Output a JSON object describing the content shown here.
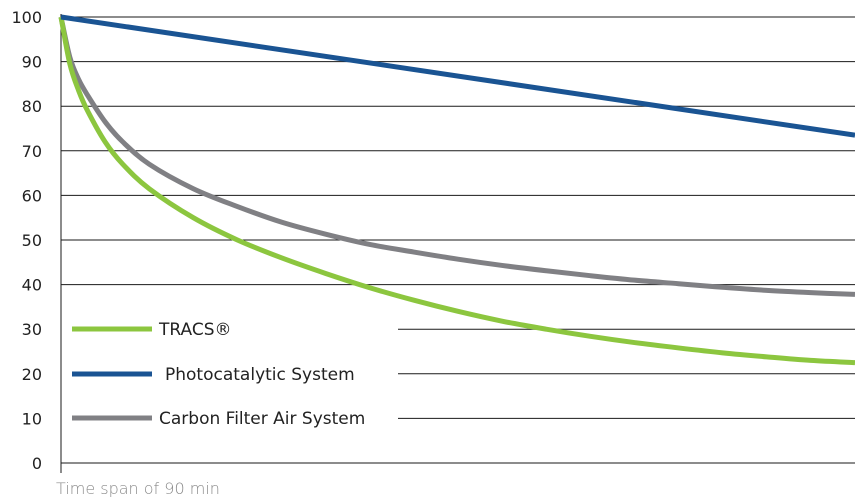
{
  "chart_data": {
    "type": "line",
    "title": "",
    "xlabel": "Time span of 90 min",
    "ylabel": "",
    "xlim": [
      0,
      90
    ],
    "ylim": [
      0,
      100
    ],
    "y_ticks": [
      0,
      10,
      20,
      30,
      40,
      50,
      60,
      70,
      80,
      90,
      100
    ],
    "y_tick_labels": [
      "0",
      "10",
      "20",
      "30",
      "40",
      "50",
      "60",
      "70",
      "80",
      "90",
      "100"
    ],
    "grid": true,
    "legend_position": "bottom-left",
    "series": [
      {
        "name": "TRACS®",
        "color": "#8cc63f",
        "x": [
          0,
          1,
          2,
          3,
          5,
          7,
          10,
          15,
          20,
          25,
          30,
          35,
          40,
          45,
          50,
          55,
          60,
          65,
          70,
          75,
          80,
          85,
          90
        ],
        "y": [
          100,
          89.5,
          83.5,
          79,
          72,
          67,
          61.5,
          55,
          50,
          46,
          42.5,
          39.3,
          36.5,
          34,
          31.8,
          30,
          28.4,
          27,
          25.8,
          24.7,
          23.8,
          23,
          22.5
        ]
      },
      {
        "name": "Photocatalytic System",
        "color": "#1a5493",
        "x": [
          0,
          90
        ],
        "y": [
          100,
          73.5
        ]
      },
      {
        "name": "Carbon Filter Air System",
        "color": "#808084",
        "x": [
          0,
          1,
          2,
          3,
          5,
          7,
          10,
          15,
          20,
          25,
          30,
          35,
          40,
          45,
          50,
          55,
          60,
          65,
          70,
          75,
          80,
          85,
          90
        ],
        "y": [
          100,
          91,
          86,
          82.5,
          76.5,
          72,
          67,
          61.5,
          57.5,
          54,
          51.3,
          49,
          47.3,
          45.7,
          44.3,
          43.1,
          42,
          41,
          40.2,
          39.4,
          38.7,
          38.2,
          37.8
        ]
      }
    ]
  }
}
